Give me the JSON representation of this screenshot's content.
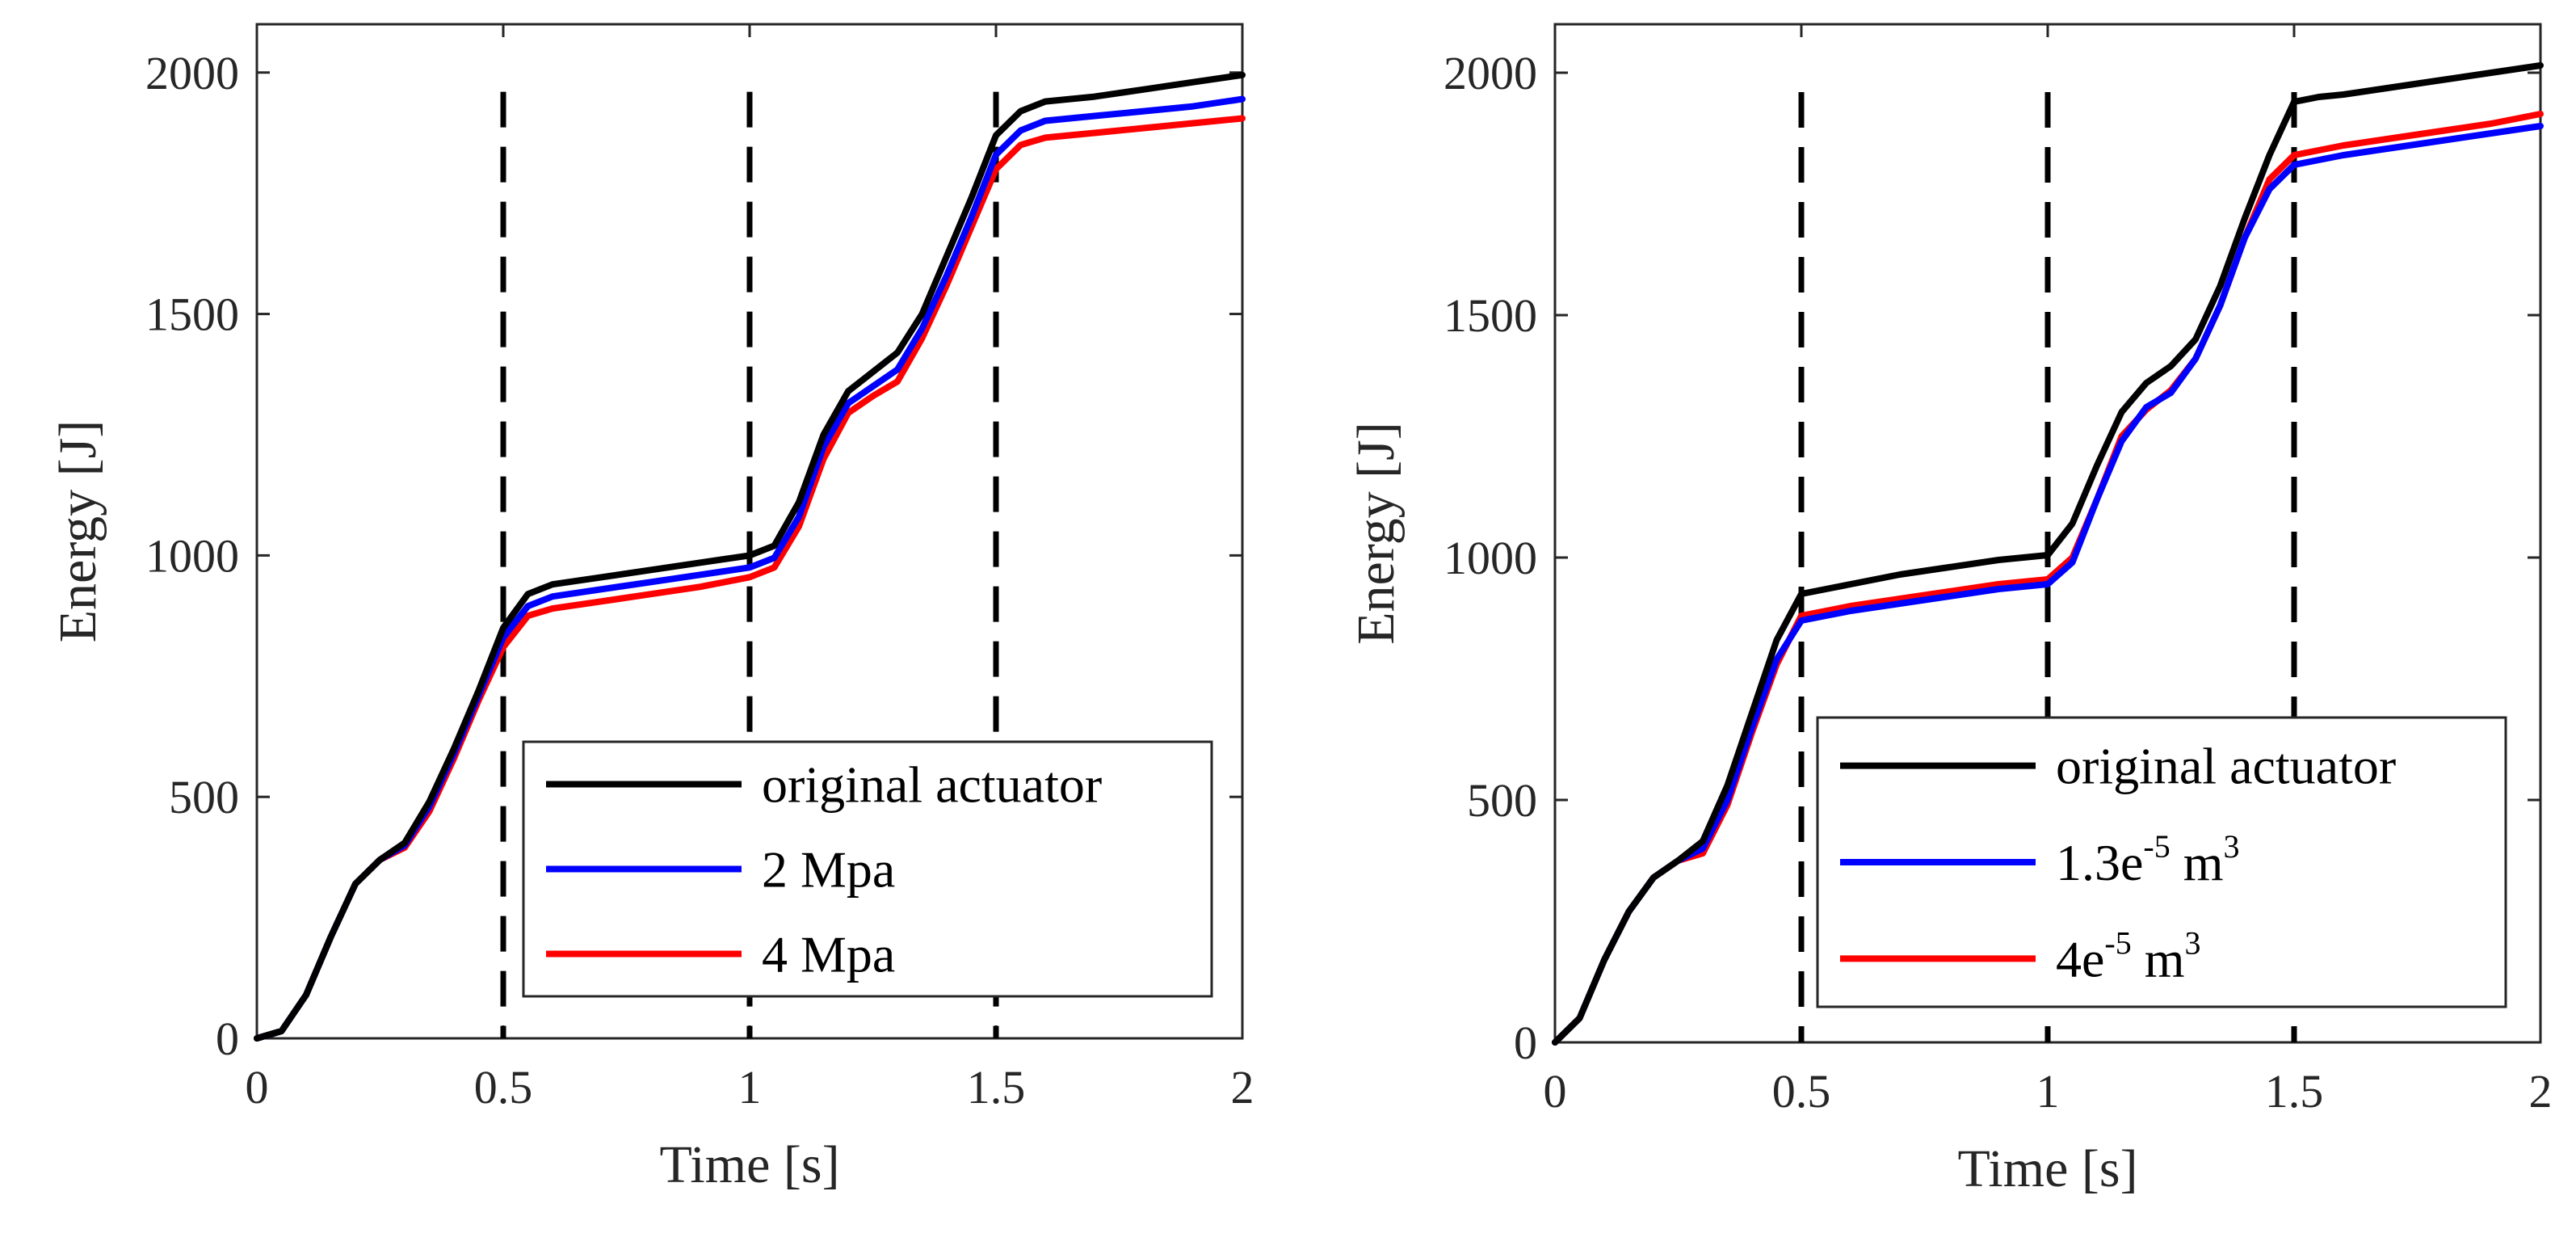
{
  "colors": {
    "original": "#000000",
    "blue": "#0000ff",
    "red": "#ff0000",
    "axis": "#262626",
    "guide": "#000000"
  },
  "chart_data": [
    {
      "type": "line",
      "title": "",
      "xlabel": "Time [s]",
      "ylabel": "Energy [J]",
      "xlim": [
        0,
        2
      ],
      "ylim": [
        0,
        2100
      ],
      "xticks": [
        0,
        0.5,
        1,
        1.5,
        2
      ],
      "xtick_labels": [
        "0",
        "0.5",
        "1",
        "1.5",
        "2"
      ],
      "yticks": [
        0,
        500,
        1000,
        1500,
        2000
      ],
      "ytick_labels": [
        "0",
        "500",
        "1000",
        "1500",
        "2000"
      ],
      "vertical_guides": [
        0.5,
        1.0,
        1.5
      ],
      "legend_position": "lower-right",
      "x": [
        0,
        0.05,
        0.1,
        0.15,
        0.2,
        0.25,
        0.3,
        0.35,
        0.4,
        0.45,
        0.5,
        0.55,
        0.6,
        0.7,
        0.8,
        0.9,
        1.0,
        1.05,
        1.1,
        1.15,
        1.2,
        1.25,
        1.3,
        1.35,
        1.4,
        1.45,
        1.5,
        1.55,
        1.6,
        1.7,
        1.8,
        1.9,
        2.0
      ],
      "series": [
        {
          "name": "original actuator",
          "color": "original",
          "values": [
            0,
            15,
            90,
            210,
            320,
            370,
            405,
            490,
            600,
            720,
            850,
            920,
            940,
            955,
            970,
            985,
            1000,
            1020,
            1110,
            1250,
            1340,
            1380,
            1420,
            1500,
            1620,
            1740,
            1870,
            1920,
            1940,
            1950,
            1965,
            1980,
            1995
          ]
        },
        {
          "name": "2 Mpa",
          "color": "blue",
          "values": [
            0,
            15,
            90,
            210,
            320,
            370,
            400,
            480,
            590,
            710,
            830,
            895,
            915,
            930,
            945,
            960,
            975,
            995,
            1080,
            1225,
            1315,
            1350,
            1385,
            1470,
            1580,
            1700,
            1830,
            1880,
            1900,
            1910,
            1920,
            1930,
            1945
          ]
        },
        {
          "name": "4 Mpa",
          "color": "red",
          "values": [
            0,
            15,
            90,
            210,
            320,
            370,
            395,
            470,
            580,
            700,
            810,
            875,
            890,
            905,
            920,
            935,
            955,
            975,
            1060,
            1200,
            1295,
            1330,
            1360,
            1450,
            1560,
            1680,
            1800,
            1850,
            1865,
            1875,
            1885,
            1895,
            1905
          ]
        }
      ]
    },
    {
      "type": "line",
      "title": "",
      "xlabel": "Time [s]",
      "ylabel": "Energy [J]",
      "xlim": [
        0,
        2
      ],
      "ylim": [
        0,
        2100
      ],
      "xticks": [
        0,
        0.5,
        1,
        1.5,
        2
      ],
      "xtick_labels": [
        "0",
        "0.5",
        "1",
        "1.5",
        "2"
      ],
      "yticks": [
        0,
        500,
        1000,
        1500,
        2000
      ],
      "ytick_labels": [
        "0",
        "500",
        "1000",
        "1500",
        "2000"
      ],
      "vertical_guides": [
        0.5,
        1.0,
        1.5
      ],
      "legend_position": "lower-right",
      "x": [
        0,
        0.05,
        0.1,
        0.15,
        0.2,
        0.25,
        0.3,
        0.35,
        0.4,
        0.45,
        0.5,
        0.55,
        0.6,
        0.7,
        0.8,
        0.9,
        1.0,
        1.05,
        1.1,
        1.15,
        1.2,
        1.25,
        1.3,
        1.35,
        1.4,
        1.45,
        1.5,
        1.55,
        1.6,
        1.7,
        1.8,
        1.9,
        2.0
      ],
      "series": [
        {
          "name": "original actuator",
          "color": "original",
          "values": [
            0,
            50,
            170,
            270,
            340,
            375,
            415,
            530,
            680,
            830,
            925,
            935,
            945,
            965,
            980,
            995,
            1005,
            1070,
            1190,
            1300,
            1360,
            1395,
            1450,
            1560,
            1700,
            1830,
            1940,
            1950,
            1955,
            1970,
            1985,
            2000,
            2015
          ]
        },
        {
          "name": "1.3e-5 m³",
          "label_base": "1.3e",
          "label_exp": "-5",
          "label_unit": " m",
          "label_unit_exp": "3",
          "color": "blue",
          "values": [
            0,
            50,
            170,
            270,
            340,
            375,
            400,
            500,
            650,
            790,
            870,
            880,
            890,
            905,
            920,
            935,
            945,
            990,
            1120,
            1240,
            1310,
            1340,
            1410,
            1520,
            1660,
            1760,
            1810,
            1820,
            1830,
            1845,
            1860,
            1875,
            1890
          ]
        },
        {
          "name": "4e-5 m³",
          "label_base": "4e",
          "label_exp": "-5",
          "label_unit": " m",
          "label_unit_exp": "3",
          "color": "red",
          "values": [
            0,
            50,
            170,
            270,
            340,
            375,
            390,
            490,
            640,
            780,
            880,
            890,
            900,
            915,
            930,
            945,
            955,
            1000,
            1120,
            1250,
            1305,
            1345,
            1410,
            1520,
            1660,
            1780,
            1830,
            1840,
            1850,
            1865,
            1880,
            1895,
            1915
          ]
        }
      ]
    }
  ]
}
